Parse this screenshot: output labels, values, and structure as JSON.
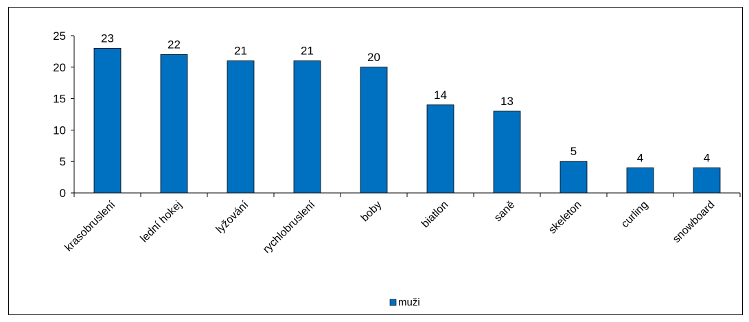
{
  "chart_data": {
    "type": "bar",
    "categories": [
      "krasobruslení",
      "lední hokej",
      "lyžování",
      "rychlobruslení",
      "boby",
      "biatlon",
      "saně",
      "skeleton",
      "curling",
      "snowboard"
    ],
    "series": [
      {
        "name": "muži",
        "values": [
          23,
          22,
          21,
          21,
          20,
          14,
          13,
          5,
          4,
          4
        ],
        "color": "#0070C0"
      }
    ],
    "yticks": [
      0,
      5,
      10,
      15,
      20,
      25
    ],
    "ylim": [
      0,
      25
    ],
    "grid": false,
    "data_labels": true,
    "legend_position": "bottom-center",
    "frame_color": "#000000"
  }
}
